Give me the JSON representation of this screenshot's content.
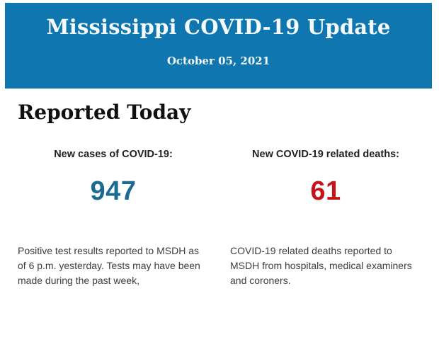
{
  "header": {
    "title": "Mississippi COVID-19 Update",
    "date": "October 05, 2021",
    "background_color": "#0f76b0",
    "text_color": "#f4fafd"
  },
  "main": {
    "heading": "Reported Today",
    "stats": [
      {
        "label": "New cases of COVID-19:",
        "value": "947",
        "value_color": "#1a6a92",
        "description": "Positive test results reported to MSDH as of 6 p.m. yesterday. Tests may have been made during the past week,"
      },
      {
        "label": "New COVID-19 related deaths:",
        "value": "61",
        "value_color": "#c3141a",
        "description": "COVID-19 related deaths reported to MSDH from hospitals, medical examiners and coroners."
      }
    ]
  }
}
